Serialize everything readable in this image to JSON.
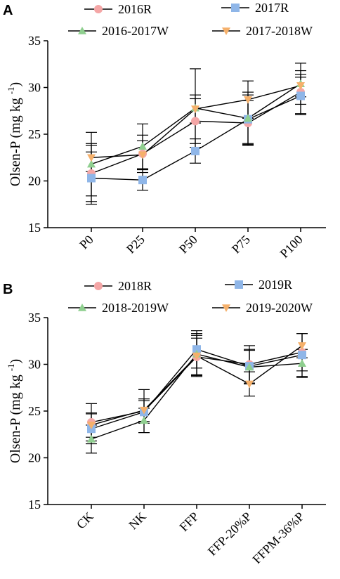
{
  "chart_data": [
    {
      "panel": "A",
      "type": "line",
      "ylabel": "Olsen-P (mg kg",
      "ylabel_sup": "-1",
      "ylabel_close": ")",
      "ylim": [
        15,
        35
      ],
      "yticks": [
        15,
        20,
        25,
        30,
        35
      ],
      "categories": [
        "P0",
        "P25",
        "P50",
        "P75",
        "P100"
      ],
      "legend_position": "top",
      "series": [
        {
          "name": "2016R",
          "marker": "circle",
          "color": "#f4a6a6",
          "values": [
            20.8,
            22.9,
            26.4,
            26.2,
            29.5
          ],
          "err": [
            3.0,
            2.0,
            2.4,
            2.4,
            2.3
          ]
        },
        {
          "name": "2017R",
          "marker": "square",
          "color": "#8fb6e8",
          "values": [
            20.3,
            20.1,
            23.2,
            26.6,
            29.1
          ],
          "err": [
            2.8,
            1.1,
            1.3,
            2.6,
            2.0
          ]
        },
        {
          "name": "2016-2017W",
          "marker": "triangle",
          "color": "#8fcf8f",
          "values": [
            21.8,
            23.7,
            27.8,
            26.7,
            30.4
          ],
          "err": [
            3.4,
            2.4,
            4.2,
            2.8,
            2.2
          ]
        },
        {
          "name": "2017-2018W",
          "marker": "triangle-down",
          "color": "#f5b06b",
          "values": [
            22.5,
            22.8,
            27.7,
            28.7,
            30.2
          ],
          "err": [
            1.5,
            1.5,
            1.5,
            2.0,
            1.2
          ]
        }
      ]
    },
    {
      "panel": "B",
      "type": "line",
      "ylabel": "Olsen-P (mg kg",
      "ylabel_sup": "-1",
      "ylabel_close": ")",
      "ylim": [
        15,
        35
      ],
      "yticks": [
        15,
        20,
        25,
        30,
        35
      ],
      "categories": [
        "CK",
        "NK",
        "FFP",
        "FFP-20%P",
        "FFPM-36%P"
      ],
      "legend_position": "top",
      "series": [
        {
          "name": "2018R",
          "marker": "circle",
          "color": "#f4a6a6",
          "values": [
            23.8,
            25.0,
            30.8,
            30.0,
            31.3
          ],
          "err": [
            2.0,
            2.3,
            2.0,
            2.0,
            2.0
          ]
        },
        {
          "name": "2019R",
          "marker": "square",
          "color": "#8fb6e8",
          "values": [
            23.1,
            24.9,
            31.6,
            29.8,
            31.0
          ],
          "err": [
            1.6,
            1.2,
            2.0,
            1.8,
            2.3
          ]
        },
        {
          "name": "2018-2019W",
          "marker": "triangle",
          "color": "#8fcf8f",
          "values": [
            22.0,
            24.0,
            31.1,
            29.7,
            30.1
          ],
          "err": [
            1.5,
            1.3,
            2.2,
            1.8,
            1.5
          ]
        },
        {
          "name": "2019-2020W",
          "marker": "triangle-down",
          "color": "#f5b06b",
          "values": [
            23.5,
            25.1,
            30.9,
            27.9,
            32.0
          ],
          "err": [
            1.3,
            1.2,
            2.2,
            1.3,
            1.3
          ]
        }
      ]
    }
  ]
}
